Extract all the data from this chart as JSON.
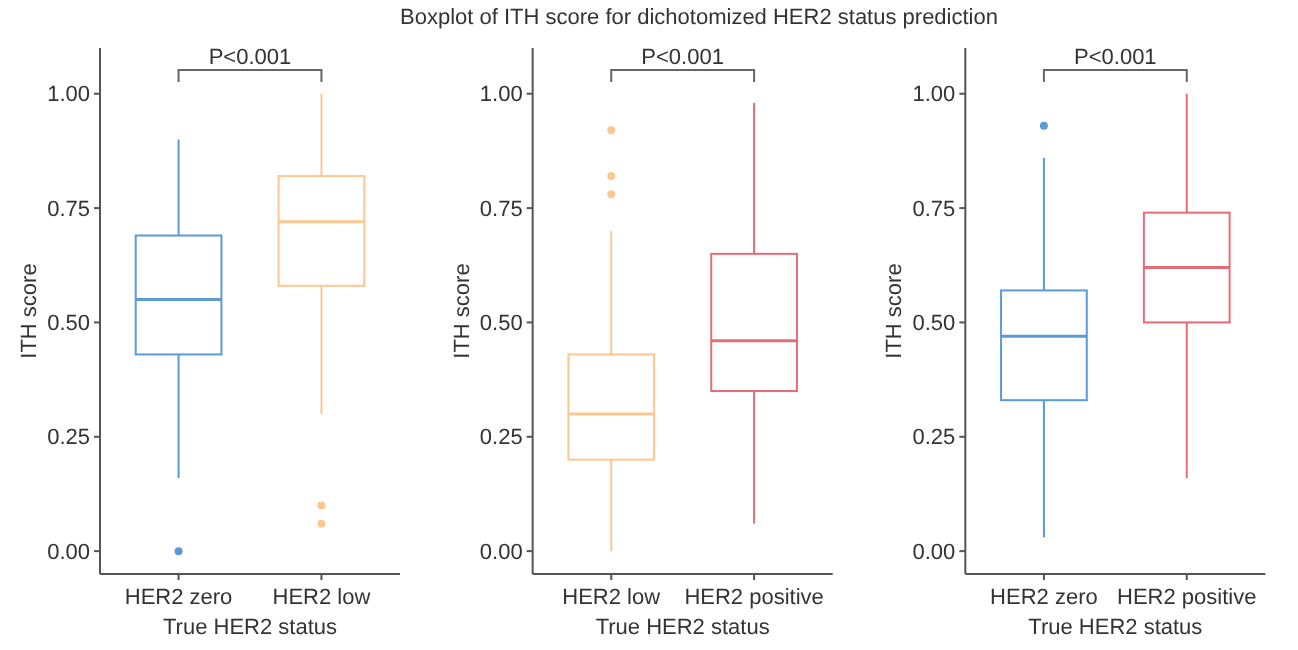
{
  "chart_data": [
    {
      "type": "box",
      "xlabel": "True HER2 status",
      "ylabel": "ITH score",
      "categories": [
        "HER2 zero",
        "HER2 low"
      ],
      "colors": [
        "#5b9bd5",
        "#fcc88f"
      ],
      "boxes": [
        {
          "low": 0.16,
          "q1": 0.43,
          "median": 0.55,
          "q3": 0.69,
          "high": 0.9,
          "outliers": [
            0
          ]
        },
        {
          "low": 0.3,
          "q1": 0.58,
          "median": 0.72,
          "q3": 0.82,
          "high": 1,
          "outliers": [
            0.1,
            0.06
          ]
        }
      ],
      "ylim": [
        -0.05,
        1.1
      ],
      "yticks": [
        {
          "value": 0,
          "label": "0.00"
        },
        {
          "value": 0.25,
          "label": "0.25"
        },
        {
          "value": 0.5,
          "label": "0.50"
        },
        {
          "value": 0.75,
          "label": "0.75"
        },
        {
          "value": 1,
          "label": "1.00"
        }
      ],
      "annotations": [
        "P<0.001"
      ]
    },
    {
      "type": "box",
      "title": "Boxplot of ITH score for dichotomized HER2 status prediction",
      "xlabel": "True HER2 status",
      "ylabel": "ITH score",
      "categories": [
        "HER2 low",
        "HER2 positive"
      ],
      "colors": [
        "#fcc88f",
        "#e46c75"
      ],
      "boxes": [
        {
          "low": 0,
          "q1": 0.2,
          "median": 0.3,
          "q3": 0.43,
          "high": 0.7,
          "outliers": [
            0.92,
            0.82,
            0.78
          ]
        },
        {
          "low": 0.06,
          "q1": 0.35,
          "median": 0.46,
          "q3": 0.65,
          "high": 0.98
        }
      ],
      "ylim": [
        -0.05,
        1.1
      ],
      "yticks": [
        {
          "value": 0,
          "label": "0.00"
        },
        {
          "value": 0.25,
          "label": "0.25"
        },
        {
          "value": 0.5,
          "label": "0.50"
        },
        {
          "value": 0.75,
          "label": "0.75"
        },
        {
          "value": 1,
          "label": "1.00"
        }
      ],
      "annotations": [
        "P<0.001"
      ]
    },
    {
      "type": "box",
      "xlabel": "True HER2 status",
      "ylabel": "ITH score",
      "categories": [
        "HER2 zero",
        "HER2 positive"
      ],
      "colors": [
        "#5b9bd5",
        "#e46c75"
      ],
      "boxes": [
        {
          "low": 0.03,
          "q1": 0.33,
          "median": 0.47,
          "q3": 0.57,
          "high": 0.86,
          "outliers": [
            0.93
          ]
        },
        {
          "low": 0.16,
          "q1": 0.5,
          "median": 0.62,
          "q3": 0.74,
          "high": 1
        }
      ],
      "ylim": [
        -0.05,
        1.1
      ],
      "yticks": [
        {
          "value": 0,
          "label": "0.00"
        },
        {
          "value": 0.25,
          "label": "0.25"
        },
        {
          "value": 0.5,
          "label": "0.50"
        },
        {
          "value": 0.75,
          "label": "0.75"
        },
        {
          "value": 1,
          "label": "1.00"
        }
      ],
      "annotations": [
        "P<0.001"
      ]
    }
  ]
}
